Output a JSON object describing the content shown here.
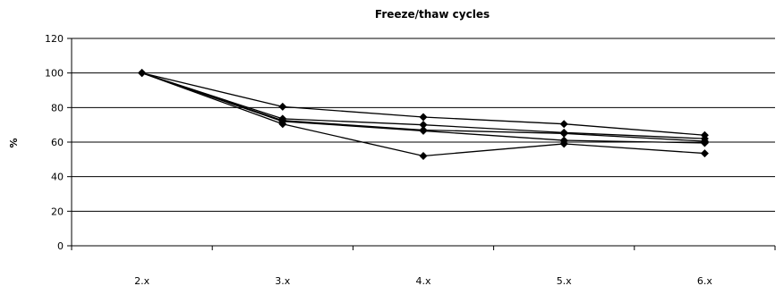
{
  "chart_data": {
    "type": "line",
    "title": "Freeze/thaw cycles",
    "xlabel": "",
    "ylabel": "%",
    "categories": [
      "2.x",
      "3.x",
      "4.x",
      "5.x",
      "6.x"
    ],
    "ylim": [
      0,
      120
    ],
    "yticks": [
      0,
      20,
      40,
      60,
      80,
      100,
      120
    ],
    "grid": true,
    "legend": "none",
    "marker": "diamond",
    "series": [
      {
        "values": [
          100,
          80.5,
          74.5,
          70.5,
          64
        ]
      },
      {
        "values": [
          100,
          73.5,
          70,
          65.5,
          62
        ]
      },
      {
        "values": [
          100,
          72.5,
          67,
          65,
          60.5
        ]
      },
      {
        "values": [
          100,
          72,
          66.5,
          61,
          59.5
        ]
      },
      {
        "values": [
          100,
          70.5,
          52,
          59,
          53.5
        ]
      }
    ]
  }
}
